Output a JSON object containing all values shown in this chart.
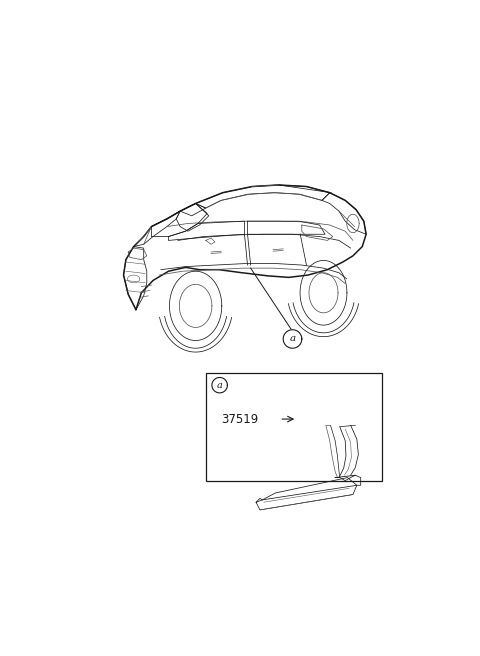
{
  "bg_color": "#ffffff",
  "line_color": "#1a1a1a",
  "med_line_color": "#555555",
  "light_line_color": "#999999",
  "fig_width": 4.8,
  "fig_height": 6.56,
  "dpi": 100,
  "part_number": "37519",
  "callout_label": "a"
}
